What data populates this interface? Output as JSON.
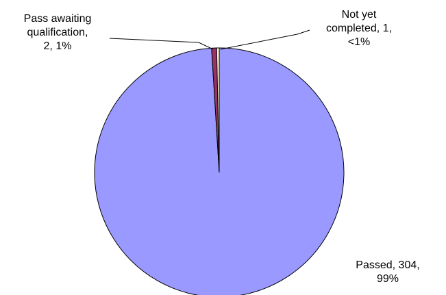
{
  "chart_data": {
    "type": "pie",
    "slices": [
      {
        "label": "Passed",
        "value": 304,
        "percent_label": "99%",
        "color": "#9999ff",
        "label_lines": [
          "Passed, 304,",
          "99%"
        ]
      },
      {
        "label": "Pass awaiting qualification",
        "value": 2,
        "percent_label": "1%",
        "color": "#993366",
        "label_lines": [
          "Pass awaiting",
          "qualification,",
          "2, 1%"
        ]
      },
      {
        "label": "Not yet completed",
        "value": 1,
        "percent_label": "<1%",
        "color": "#ffffcc",
        "label_lines": [
          "Not yet",
          "completed, 1,",
          "<1%"
        ]
      }
    ],
    "start_slice_order": "Passed counter-clockwise from top, then Pass awaiting qualification, then Not yet completed",
    "legend": "none",
    "title": ""
  }
}
